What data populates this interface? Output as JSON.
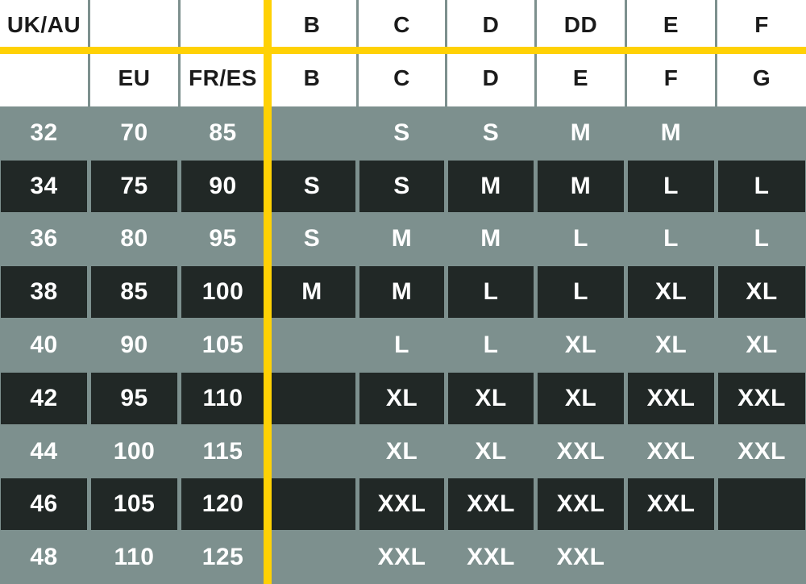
{
  "colors": {
    "sage": "#7d908e",
    "black_row": "#212826",
    "header_bg": "#ffffff",
    "accent_yellow": "#ffd104",
    "header_text": "#1b1b1b",
    "data_text": "#ffffff"
  },
  "chart_data": {
    "type": "table",
    "description_visible_text_only": "bra size conversion grid",
    "header_rows": [
      [
        "UK/AU",
        "",
        "",
        "B",
        "C",
        "D",
        "DD",
        "E",
        "F"
      ],
      [
        "",
        "EU",
        "FR/ES",
        "B",
        "C",
        "D",
        "E",
        "F",
        "G"
      ]
    ],
    "rows": [
      {
        "theme": "sage",
        "cells": [
          "32",
          "70",
          "85",
          "",
          "S",
          "S",
          "M",
          "M",
          ""
        ]
      },
      {
        "theme": "black",
        "cells": [
          "34",
          "75",
          "90",
          "S",
          "S",
          "M",
          "M",
          "L",
          "L"
        ]
      },
      {
        "theme": "sage",
        "cells": [
          "36",
          "80",
          "95",
          "S",
          "M",
          "M",
          "L",
          "L",
          "L"
        ]
      },
      {
        "theme": "black",
        "cells": [
          "38",
          "85",
          "100",
          "M",
          "M",
          "L",
          "L",
          "XL",
          "XL"
        ]
      },
      {
        "theme": "sage",
        "cells": [
          "40",
          "90",
          "105",
          "",
          "L",
          "L",
          "XL",
          "XL",
          "XL"
        ]
      },
      {
        "theme": "black",
        "cells": [
          "42",
          "95",
          "110",
          "",
          "XL",
          "XL",
          "XL",
          "XXL",
          "XXL"
        ]
      },
      {
        "theme": "sage",
        "cells": [
          "44",
          "100",
          "115",
          "",
          "XL",
          "XL",
          "XXL",
          "XXL",
          "XXL"
        ]
      },
      {
        "theme": "black",
        "cells": [
          "46",
          "105",
          "120",
          "",
          "XXL",
          "XXL",
          "XXL",
          "XXL",
          ""
        ]
      },
      {
        "theme": "sage",
        "cells": [
          "48",
          "110",
          "125",
          "",
          "XXL",
          "XXL",
          "XXL",
          "",
          ""
        ]
      }
    ]
  }
}
